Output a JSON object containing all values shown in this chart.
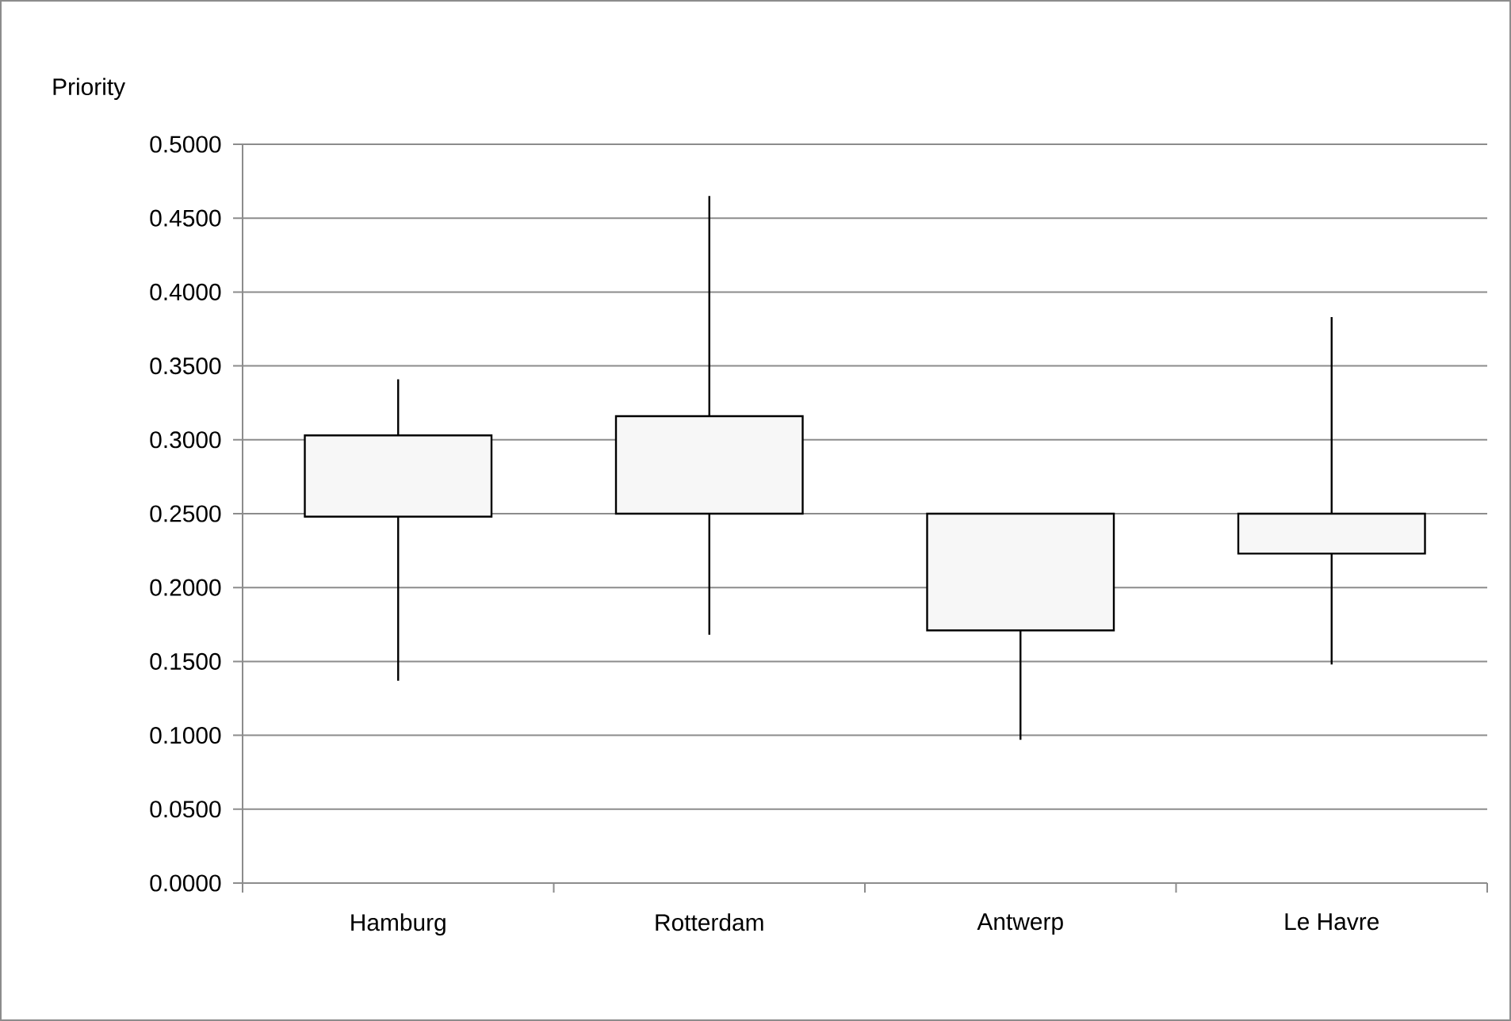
{
  "chart_data": {
    "type": "candlestick",
    "ylabel": "Priority",
    "categories": [
      "Hamburg",
      "Rotterdam",
      "Antwerp",
      "Le Havre"
    ],
    "ohlc": [
      [
        0.248,
        0.341,
        0.137,
        0.303
      ],
      [
        0.25,
        0.465,
        0.168,
        0.316
      ],
      [
        0.171,
        0.25,
        0.097,
        0.25
      ],
      [
        0.223,
        0.383,
        0.148,
        0.25
      ]
    ],
    "ylim": [
      0,
      0.5
    ],
    "yticks": [
      {
        "value": 0,
        "label": "0.0000"
      },
      {
        "value": 0.05,
        "label": "0.0500"
      },
      {
        "value": 0.1,
        "label": "0.1000"
      },
      {
        "value": 0.15,
        "label": "0.1500"
      },
      {
        "value": 0.2,
        "label": "0.2000"
      },
      {
        "value": 0.25,
        "label": "0.2500"
      },
      {
        "value": 0.3,
        "label": "0.3000"
      },
      {
        "value": 0.35,
        "label": "0.3500"
      },
      {
        "value": 0.4,
        "label": "0.4000"
      },
      {
        "value": 0.45,
        "label": "0.4500"
      },
      {
        "value": 0.5,
        "label": "0.5000"
      }
    ],
    "grid": "y"
  }
}
